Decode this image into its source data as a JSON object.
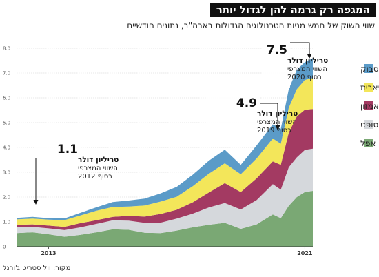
{
  "header": {
    "title": "המגפה רק גרמה להן לגדול יותר",
    "subtitle": "שווי השוק של חמש מניות הטכנולוגיה הגדולות בארה\"ב, נתונים חודשיים"
  },
  "source": "מקור: וול סטריט ג'ורנל",
  "colors": {
    "apple": "#7aa874",
    "microsoft": "#d5d8dc",
    "amazon": "#a33a62",
    "alphabet": "#f3e65a",
    "facebook": "#5b9bc8"
  },
  "annotations": [
    {
      "value": "1.1",
      "line1": "טריליון דולר",
      "line2": "השווי המצרפי",
      "line3": "בסוף 2012"
    },
    {
      "value": "4.9",
      "line1": "טריליון דולר",
      "line2": "השווי המצרפי",
      "line3": "בסוף 2019"
    },
    {
      "value": "7.5",
      "line1": "טריליון דולר",
      "line2": "השווי המצרפי",
      "line3": "בסוף 2020"
    }
  ],
  "chart_data": {
    "type": "area",
    "stacked": true,
    "title": "המגפה רק גרמה להן לגדול יותר",
    "subtitle": "שווי השוק של חמש מניות הטכנולוגיה הגדולות בארה\"ב, נתונים חודשיים",
    "ylim": [
      0,
      8
    ],
    "yticks": [
      "0",
      "1.0",
      "2.0",
      "3.0",
      "4.0",
      "5.0",
      "6.0",
      "7.0",
      "8.0"
    ],
    "xtick_labels": [
      "2013",
      "2021"
    ],
    "x": [
      2012.0,
      2012.5,
      2013.0,
      2013.5,
      2014.0,
      2014.5,
      2015.0,
      2015.5,
      2016.0,
      2016.5,
      2017.0,
      2017.5,
      2018.0,
      2018.5,
      2019.0,
      2019.5,
      2020.0,
      2020.25,
      2020.5,
      2020.75,
      2021.0,
      2021.25
    ],
    "series": [
      {
        "name": "אפל",
        "values": [
          0.55,
          0.58,
          0.5,
          0.4,
          0.48,
          0.58,
          0.7,
          0.68,
          0.56,
          0.55,
          0.65,
          0.78,
          0.88,
          0.96,
          0.72,
          0.9,
          1.3,
          1.15,
          1.65,
          2.0,
          2.2,
          2.25
        ]
      },
      {
        "name": "מיקרוסופט",
        "values": [
          0.23,
          0.22,
          0.24,
          0.27,
          0.3,
          0.34,
          0.36,
          0.37,
          0.4,
          0.42,
          0.48,
          0.55,
          0.7,
          0.8,
          0.78,
          0.98,
          1.22,
          1.15,
          1.55,
          1.6,
          1.7,
          1.7
        ]
      },
      {
        "name": "אמזון",
        "values": [
          0.1,
          0.1,
          0.11,
          0.13,
          0.17,
          0.15,
          0.14,
          0.19,
          0.25,
          0.35,
          0.36,
          0.46,
          0.6,
          0.8,
          0.7,
          0.88,
          0.92,
          1.0,
          1.4,
          1.65,
          1.62,
          1.6
        ]
      },
      {
        "name": "אלפאבית",
        "values": [
          0.22,
          0.23,
          0.24,
          0.27,
          0.31,
          0.38,
          0.4,
          0.38,
          0.45,
          0.5,
          0.52,
          0.65,
          0.76,
          0.8,
          0.72,
          0.8,
          0.92,
          0.85,
          1.0,
          1.1,
          1.2,
          1.25
        ]
      },
      {
        "name": "פייסבוק",
        "values": [
          0.06,
          0.07,
          0.06,
          0.07,
          0.11,
          0.14,
          0.2,
          0.24,
          0.28,
          0.33,
          0.4,
          0.46,
          0.52,
          0.55,
          0.38,
          0.53,
          0.57,
          0.6,
          0.75,
          0.78,
          0.72,
          0.8
        ]
      }
    ]
  }
}
